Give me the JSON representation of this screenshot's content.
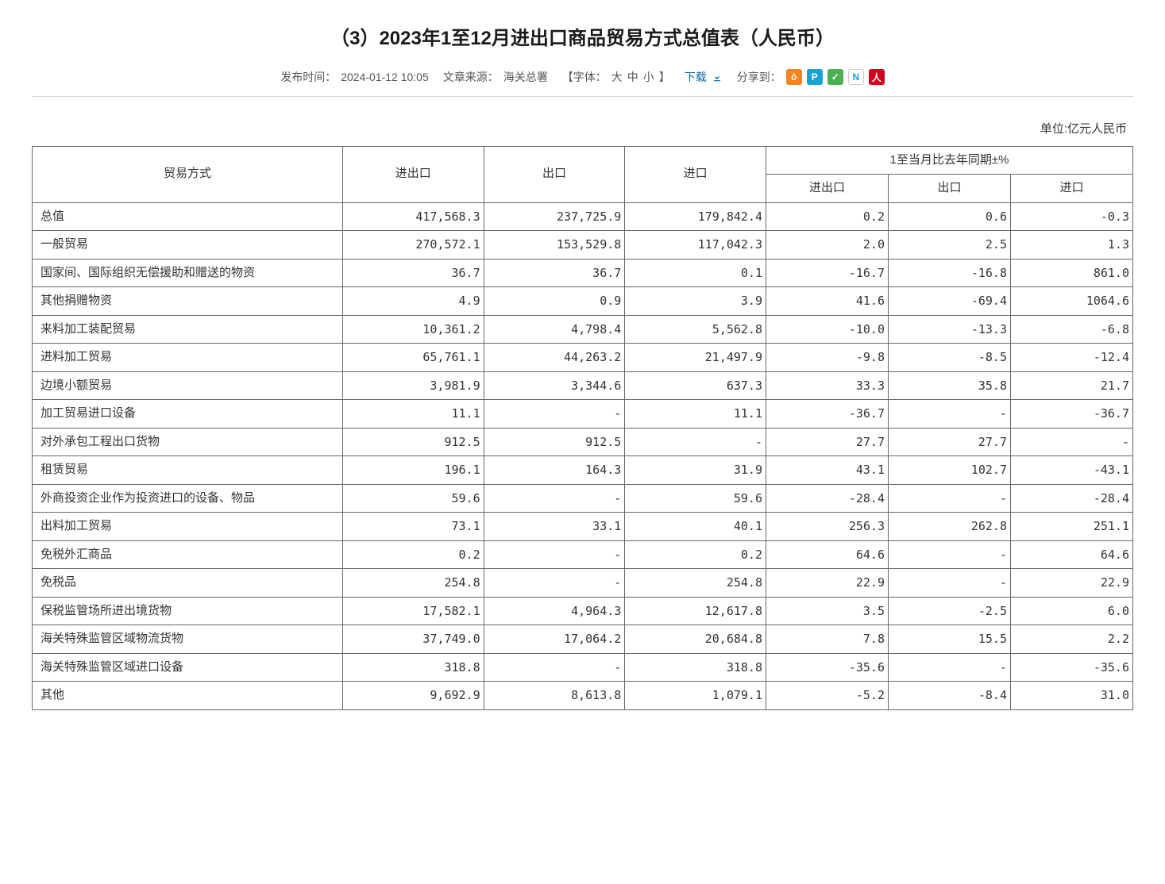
{
  "title": "（3）2023年1至12月进出口商品贸易方式总值表（人民币）",
  "meta": {
    "publish_label": "发布时间：",
    "publish_time": "2024-01-12 10:05",
    "source_label": "文章来源：",
    "source_value": "海关总署",
    "fontsize_prefix": "【字体：",
    "fontsize_large": "大",
    "fontsize_medium": "中",
    "fontsize_small": "小",
    "fontsize_suffix": "】",
    "download_label": "下载",
    "share_label": "分享到："
  },
  "share_icons": [
    {
      "name": "weibo-icon",
      "bg": "#f6841f",
      "glyph": "o̊"
    },
    {
      "name": "pengyou-icon",
      "bg": "#16a2d7",
      "glyph": "P"
    },
    {
      "name": "wechat-icon",
      "bg": "#4cb050",
      "glyph": "✓"
    },
    {
      "name": "news-icon",
      "bg": "#ffffff",
      "glyph": "N",
      "fg": "#16a2d7",
      "border": "#cccccc"
    },
    {
      "name": "renmin-icon",
      "bg": "#d0021b",
      "glyph": "人"
    }
  ],
  "unit_label": "单位:亿元人民币",
  "table": {
    "headers": {
      "method": "贸易方式",
      "inout": "进出口",
      "out": "出口",
      "in": "进口",
      "yoy_group": "1至当月比去年同期±%",
      "yoy_inout": "进出口",
      "yoy_out": "出口",
      "yoy_in": "进口"
    },
    "rows": [
      {
        "label": "总值",
        "inout": "417,568.3",
        "out": "237,725.9",
        "in": "179,842.4",
        "yoy_inout": "0.2",
        "yoy_out": "0.6",
        "yoy_in": "-0.3"
      },
      {
        "label": "一般贸易",
        "inout": "270,572.1",
        "out": "153,529.8",
        "in": "117,042.3",
        "yoy_inout": "2.0",
        "yoy_out": "2.5",
        "yoy_in": "1.3"
      },
      {
        "label": "国家间、国际组织无偿援助和赠送的物资",
        "inout": "36.7",
        "out": "36.7",
        "in": "0.1",
        "yoy_inout": "-16.7",
        "yoy_out": "-16.8",
        "yoy_in": "861.0"
      },
      {
        "label": "其他捐赠物资",
        "inout": "4.9",
        "out": "0.9",
        "in": "3.9",
        "yoy_inout": "41.6",
        "yoy_out": "-69.4",
        "yoy_in": "1064.6"
      },
      {
        "label": "来料加工装配贸易",
        "inout": "10,361.2",
        "out": "4,798.4",
        "in": "5,562.8",
        "yoy_inout": "-10.0",
        "yoy_out": "-13.3",
        "yoy_in": "-6.8"
      },
      {
        "label": "进料加工贸易",
        "inout": "65,761.1",
        "out": "44,263.2",
        "in": "21,497.9",
        "yoy_inout": "-9.8",
        "yoy_out": "-8.5",
        "yoy_in": "-12.4"
      },
      {
        "label": "边境小额贸易",
        "inout": "3,981.9",
        "out": "3,344.6",
        "in": "637.3",
        "yoy_inout": "33.3",
        "yoy_out": "35.8",
        "yoy_in": "21.7"
      },
      {
        "label": "加工贸易进口设备",
        "inout": "11.1",
        "out": "-",
        "in": "11.1",
        "yoy_inout": "-36.7",
        "yoy_out": "-",
        "yoy_in": "-36.7"
      },
      {
        "label": "对外承包工程出口货物",
        "inout": "912.5",
        "out": "912.5",
        "in": "-",
        "yoy_inout": "27.7",
        "yoy_out": "27.7",
        "yoy_in": "-"
      },
      {
        "label": "租赁贸易",
        "inout": "196.1",
        "out": "164.3",
        "in": "31.9",
        "yoy_inout": "43.1",
        "yoy_out": "102.7",
        "yoy_in": "-43.1"
      },
      {
        "label": "外商投资企业作为投资进口的设备、物品",
        "inout": "59.6",
        "out": "-",
        "in": "59.6",
        "yoy_inout": "-28.4",
        "yoy_out": "-",
        "yoy_in": "-28.4"
      },
      {
        "label": "出料加工贸易",
        "inout": "73.1",
        "out": "33.1",
        "in": "40.1",
        "yoy_inout": "256.3",
        "yoy_out": "262.8",
        "yoy_in": "251.1"
      },
      {
        "label": "免税外汇商品",
        "inout": "0.2",
        "out": "-",
        "in": "0.2",
        "yoy_inout": "64.6",
        "yoy_out": "-",
        "yoy_in": "64.6"
      },
      {
        "label": "免税品",
        "inout": "254.8",
        "out": "-",
        "in": "254.8",
        "yoy_inout": "22.9",
        "yoy_out": "-",
        "yoy_in": "22.9"
      },
      {
        "label": "保税监管场所进出境货物",
        "inout": "17,582.1",
        "out": "4,964.3",
        "in": "12,617.8",
        "yoy_inout": "3.5",
        "yoy_out": "-2.5",
        "yoy_in": "6.0"
      },
      {
        "label": "海关特殊监管区域物流货物",
        "inout": "37,749.0",
        "out": "17,064.2",
        "in": "20,684.8",
        "yoy_inout": "7.8",
        "yoy_out": "15.5",
        "yoy_in": "2.2"
      },
      {
        "label": "海关特殊监管区域进口设备",
        "inout": "318.8",
        "out": "-",
        "in": "318.8",
        "yoy_inout": "-35.6",
        "yoy_out": "-",
        "yoy_in": "-35.6"
      },
      {
        "label": "其他",
        "inout": "9,692.9",
        "out": "8,613.8",
        "in": "1,079.1",
        "yoy_inout": "-5.2",
        "yoy_out": "-8.4",
        "yoy_in": "31.0"
      }
    ]
  },
  "colors": {
    "text": "#333333",
    "link_blue": "#0a66a5",
    "border": "#666666",
    "divider": "#d0d0d0"
  }
}
